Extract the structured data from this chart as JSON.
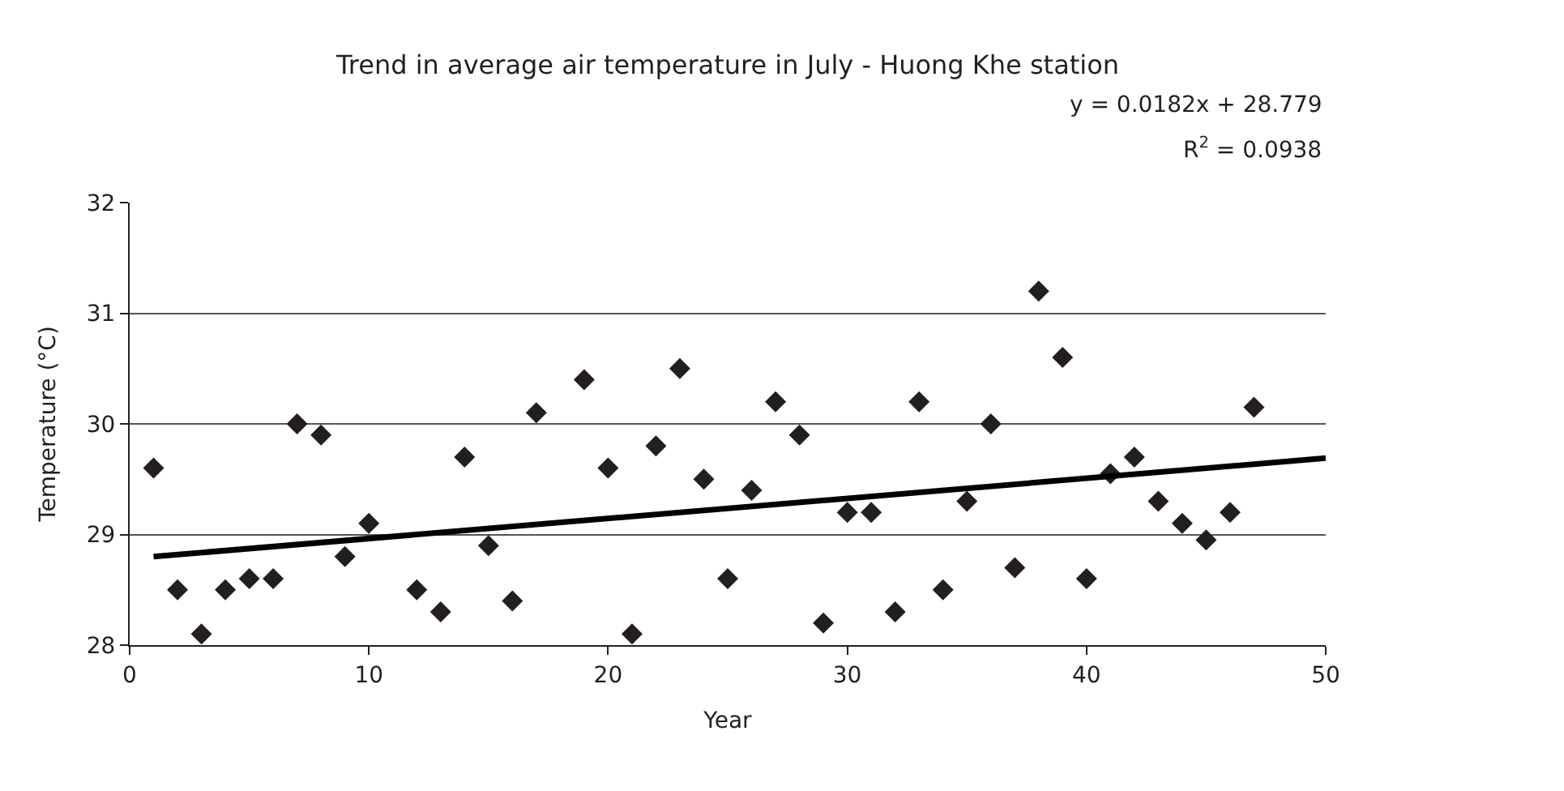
{
  "chart_data": {
    "type": "scatter",
    "title": "Trend in average air temperature in July - Huong Khe station",
    "xlabel": "Year",
    "ylabel": "Temperature (°C)",
    "annotations": [
      "y = 0.0182x + 28.779",
      "R$^{2}$ = 0.0938"
    ],
    "series": [
      {
        "color": "#231f20",
        "marker": "diamond",
        "x": [
          1,
          2,
          3,
          4,
          5,
          6,
          7,
          8,
          9,
          10,
          12,
          13,
          14,
          15,
          16,
          17,
          19,
          20,
          21,
          22,
          23,
          24,
          25,
          26,
          27,
          28,
          29,
          30,
          31,
          32,
          33,
          34,
          35,
          36,
          37,
          38,
          39,
          40,
          41,
          42,
          43,
          44,
          45,
          46,
          47
        ],
        "values": [
          29.6,
          28.5,
          28.1,
          28.5,
          28.6,
          28.6,
          30.0,
          29.9,
          28.8,
          29.1,
          28.5,
          28.3,
          29.7,
          28.9,
          28.4,
          30.1,
          30.4,
          29.6,
          28.1,
          29.8,
          30.5,
          29.5,
          28.6,
          29.4,
          30.2,
          29.9,
          28.2,
          29.2,
          29.2,
          28.3,
          30.2,
          28.5,
          29.3,
          30.0,
          28.7,
          31.2,
          30.6,
          28.6,
          29.55,
          29.7,
          29.3,
          29.1,
          28.95,
          29.2,
          30.15
        ]
      },
      {
        "type": "line",
        "color": "#000000",
        "marker": "none",
        "x": [
          1,
          50
        ],
        "values": [
          28.8,
          29.69
        ]
      }
    ],
    "xlim": [
      0,
      50
    ],
    "xticks": [
      0,
      10,
      20,
      30,
      40,
      50
    ],
    "ylim": [
      28,
      32
    ],
    "yticks": [
      28,
      29,
      30,
      31,
      32
    ],
    "grid": "y",
    "legend": false
  }
}
